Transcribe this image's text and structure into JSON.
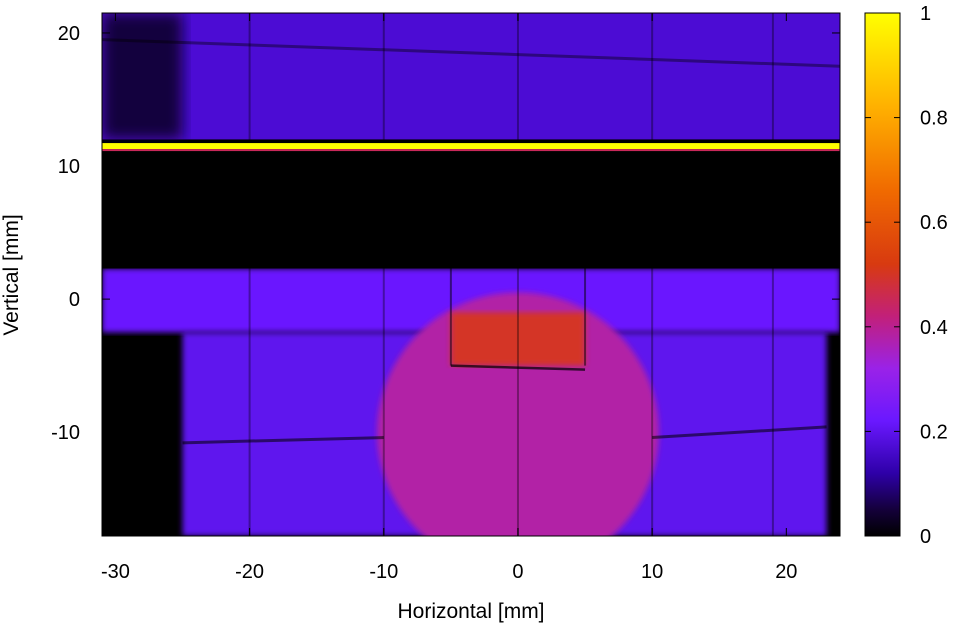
{
  "chart_data": {
    "type": "heatmap",
    "title": "",
    "xlabel": "Horizontal [mm]",
    "ylabel": "Vertical [mm]",
    "xlim": [
      -31,
      24
    ],
    "ylim": [
      -17.8,
      21.5
    ],
    "x_ticks": [
      -30,
      -20,
      -10,
      0,
      10,
      20
    ],
    "y_ticks": [
      -10,
      0,
      10,
      20
    ],
    "colorbar": {
      "range": [
        0,
        1
      ],
      "ticks": [
        0,
        0.2,
        0.4,
        0.6,
        0.8,
        1
      ],
      "colormap": "black-blue-violet-red-yellow",
      "stops": [
        {
          "v": 0.0,
          "color": "#000000"
        },
        {
          "v": 0.05,
          "color": "#14003a"
        },
        {
          "v": 0.12,
          "color": "#2e00a8"
        },
        {
          "v": 0.22,
          "color": "#6a18ff"
        },
        {
          "v": 0.32,
          "color": "#9a22e8"
        },
        {
          "v": 0.42,
          "color": "#c2207a"
        },
        {
          "v": 0.52,
          "color": "#d83a10"
        },
        {
          "v": 0.66,
          "color": "#f06a00"
        },
        {
          "v": 0.82,
          "color": "#ffb000"
        },
        {
          "v": 1.0,
          "color": "#ffff00"
        }
      ]
    },
    "features": [
      {
        "name": "upper band",
        "x_range": [
          -31,
          24
        ],
        "y_range": [
          12,
          21.5
        ],
        "intensity": 0.17
      },
      {
        "name": "bright line",
        "x_range": [
          -31,
          24
        ],
        "y": 11.5,
        "intensity": 1.0
      },
      {
        "name": "dark gap",
        "x_range": [
          -31,
          24
        ],
        "y_range": [
          2.3,
          11.2
        ],
        "intensity": 0.0
      },
      {
        "name": "horizontal strip",
        "x_range": [
          -31,
          24
        ],
        "y_range": [
          -2.5,
          2.3
        ],
        "intensity": 0.22
      },
      {
        "name": "lower illuminated region",
        "x_range": [
          -25,
          23
        ],
        "y_range": [
          -17.8,
          -2.5
        ],
        "intensity": 0.2
      },
      {
        "name": "central disk",
        "center": [
          0,
          -10
        ],
        "radius": 10.5,
        "intensity": 0.38
      },
      {
        "name": "central hot spot",
        "x_range": [
          -5,
          5
        ],
        "y_range": [
          -5,
          -1
        ],
        "intensity": 0.5
      }
    ]
  }
}
